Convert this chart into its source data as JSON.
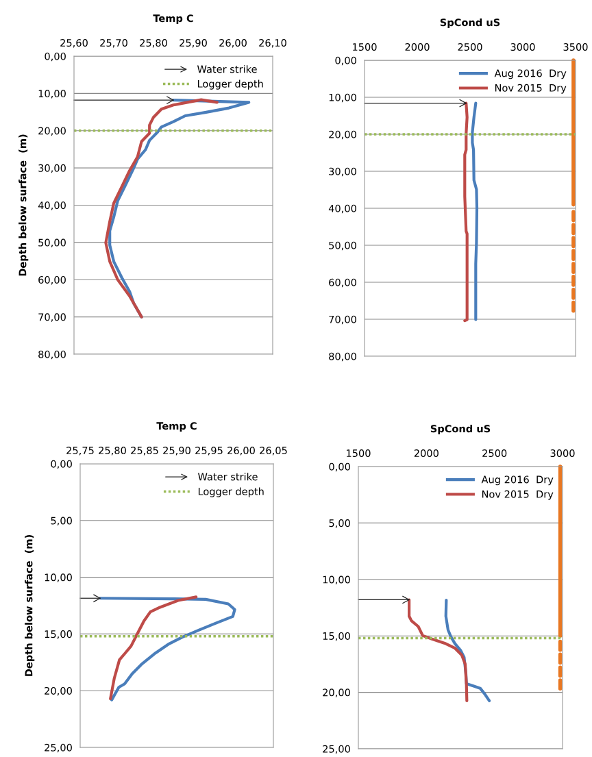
{
  "chart_data": [
    {
      "type": "line",
      "title": "Temp C",
      "ylabel": "Depth below surface  (m)",
      "legend": "top right",
      "grid": "y",
      "xlim": [
        25.6,
        26.1
      ],
      "xticks": [
        {
          "value": 25.6,
          "label": "25,60"
        },
        {
          "value": 25.7,
          "label": "25,70"
        },
        {
          "value": 25.8,
          "label": "25,80"
        },
        {
          "value": 25.9,
          "label": "25,90"
        },
        {
          "value": 26.0,
          "label": "26,00"
        },
        {
          "value": 26.1,
          "label": "26,10"
        }
      ],
      "ylim": [
        80,
        0
      ],
      "yticks": [
        {
          "value": 0,
          "label": "0,00"
        },
        {
          "value": 10,
          "label": "10,00"
        },
        {
          "value": 20,
          "label": "20,00"
        },
        {
          "value": 30,
          "label": "30,00"
        },
        {
          "value": 40,
          "label": "40,00"
        },
        {
          "value": 50,
          "label": "50,00"
        },
        {
          "value": 60,
          "label": "60,00"
        },
        {
          "value": 70,
          "label": "70,00"
        },
        {
          "value": 80,
          "label": "80,00"
        }
      ],
      "ref_lines": [
        {
          "axis": "y",
          "value": 11.8,
          "label": "Water strike",
          "color": "#222222",
          "line_style": "solid"
        },
        {
          "axis": "y",
          "value": 20,
          "label": "Logger depth",
          "color": "#9bbb59",
          "line_style": "dotted"
        }
      ],
      "series": [
        {
          "color": "#4a7ebb",
          "x": [
            25.85,
            26.04,
            25.99,
            25.93,
            25.88,
            25.85,
            25.82,
            25.81,
            25.79,
            25.78,
            25.76,
            25.75,
            25.73,
            25.71,
            25.7,
            25.69,
            25.69,
            25.7,
            25.72,
            25.74,
            25.75,
            25.77
          ],
          "values": [
            11.8,
            12.4,
            13.9,
            15.1,
            16.0,
            17.6,
            19.0,
            20.4,
            22.6,
            25.1,
            27.6,
            30.1,
            34.5,
            38.8,
            43.2,
            46.9,
            50.7,
            55.1,
            59.4,
            63.2,
            66.3,
            70.0
          ]
        },
        {
          "color": "#be4b48",
          "x": [
            25.96,
            25.92,
            25.89,
            25.85,
            25.82,
            25.8,
            25.79,
            25.79,
            25.77,
            25.76,
            25.74,
            25.72,
            25.7,
            25.69,
            25.68,
            25.69,
            25.71,
            25.74,
            25.77
          ],
          "values": [
            12.4,
            11.7,
            12.3,
            13.1,
            14.2,
            16.4,
            18.5,
            20.7,
            22.9,
            27.0,
            30.7,
            35.1,
            39.5,
            44.4,
            50.1,
            55.1,
            60.0,
            64.4,
            70.0
          ]
        }
      ]
    },
    {
      "type": "line",
      "title": "SpCond uS",
      "legend": "top right",
      "grid": "y",
      "xlim": [
        1500,
        3500
      ],
      "xticks": [
        1500,
        2000,
        2500,
        3000,
        3500
      ],
      "ylim": [
        80,
        0
      ],
      "yticks": [
        {
          "value": 0,
          "label": "0,00"
        },
        {
          "value": 10,
          "label": "10,00"
        },
        {
          "value": 20,
          "label": "20,00"
        },
        {
          "value": 30,
          "label": "30,00"
        },
        {
          "value": 40,
          "label": "40,00"
        },
        {
          "value": 50,
          "label": "50,00"
        },
        {
          "value": 60,
          "label": "60,00"
        },
        {
          "value": 70,
          "label": "70,00"
        },
        {
          "value": 80,
          "label": "80,00"
        }
      ],
      "ref_lines": [
        {
          "axis": "y",
          "value": 11.6,
          "color": "#222222",
          "line_style": "solid"
        },
        {
          "axis": "y",
          "value": 20,
          "color": "#9bbb59",
          "line_style": "dotted"
        }
      ],
      "series": [
        {
          "name": "Aug 2016  Dry",
          "color": "#4a7ebb",
          "x": [
            2554,
            2537,
            2522,
            2522,
            2533,
            2537,
            2561,
            2565,
            2561,
            2554,
            2554
          ],
          "values": [
            11.6,
            15.4,
            19.5,
            22.3,
            24.2,
            32.4,
            34.9,
            39.9,
            49.4,
            55.0,
            70.1
          ]
        },
        {
          "name": "Nov 2015  Dry",
          "color": "#be4b48",
          "x": [
            2463,
            2472,
            2463,
            2463,
            2450,
            2450,
            2463,
            2472,
            2472,
            2450
          ],
          "values": [
            11.6,
            15.4,
            19.8,
            24.2,
            25.5,
            36.8,
            46.2,
            46.9,
            70.1,
            70.4
          ]
        },
        {
          "color": "#e87722",
          "x": [
            3480,
            3480
          ],
          "values": [
            0,
            39
          ],
          "line_style": "solid"
        },
        {
          "color": "#e87722",
          "x": [
            3480,
            3480
          ],
          "values": [
            41,
            68
          ],
          "line_style": "dashed"
        }
      ]
    },
    {
      "type": "line",
      "title": "Temp C",
      "ylabel": "Depth below surface  (m)",
      "legend": "top right",
      "grid": "y",
      "xlim": [
        25.75,
        26.05
      ],
      "xticks": [
        {
          "value": 25.75,
          "label": "25,75"
        },
        {
          "value": 25.8,
          "label": "25,80"
        },
        {
          "value": 25.85,
          "label": "25,85"
        },
        {
          "value": 25.9,
          "label": "25,90"
        },
        {
          "value": 25.95,
          "label": "25,95"
        },
        {
          "value": 26.0,
          "label": "26,00"
        },
        {
          "value": 26.05,
          "label": "26,05"
        }
      ],
      "ylim": [
        25,
        0
      ],
      "yticks": [
        {
          "value": 0,
          "label": "0,00"
        },
        {
          "value": 5,
          "label": "5,00"
        },
        {
          "value": 10,
          "label": "10,00"
        },
        {
          "value": 15,
          "label": "15,00"
        },
        {
          "value": 20,
          "label": "20,00"
        },
        {
          "value": 25,
          "label": "25,00"
        }
      ],
      "ref_lines": [
        {
          "axis": "y",
          "value": 11.85,
          "label": "Water strike",
          "color": "#222222",
          "line_style": "solid"
        },
        {
          "axis": "y",
          "value": 15.2,
          "label": "Logger depth",
          "color": "#9bbb59",
          "line_style": "dotted"
        }
      ],
      "series": [
        {
          "color": "#4a7ebb",
          "x": [
            25.781,
            25.891,
            25.945,
            25.98,
            25.99,
            25.987,
            25.96,
            25.934,
            25.909,
            25.888,
            25.867,
            25.845,
            25.831,
            25.819,
            25.81,
            25.804,
            25.799
          ],
          "values": [
            11.85,
            11.9,
            11.95,
            12.35,
            12.85,
            13.46,
            14.06,
            14.67,
            15.27,
            15.87,
            16.68,
            17.69,
            18.49,
            19.4,
            19.7,
            20.31,
            20.81
          ]
        },
        {
          "color": "#be4b48",
          "x": [
            25.93,
            25.902,
            25.874,
            25.859,
            25.849,
            25.838,
            25.829,
            25.82,
            25.811,
            25.803,
            25.797
          ],
          "values": [
            11.74,
            12.05,
            12.65,
            13.05,
            13.86,
            15.07,
            16.07,
            16.68,
            17.28,
            18.9,
            20.71
          ]
        }
      ]
    },
    {
      "type": "line",
      "title": "SpCond uS",
      "legend": "top right",
      "grid": "y",
      "xlim": [
        1500,
        3000
      ],
      "xticks": [
        1500,
        2000,
        2500,
        3000
      ],
      "ylim": [
        25,
        0
      ],
      "yticks": [
        {
          "value": 0,
          "label": "0,00"
        },
        {
          "value": 5,
          "label": "5,00"
        },
        {
          "value": 10,
          "label": "10,00"
        },
        {
          "value": 15,
          "label": "15,00"
        },
        {
          "value": 20,
          "label": "20,00"
        },
        {
          "value": 25,
          "label": "25,00"
        }
      ],
      "ref_lines": [
        {
          "axis": "y",
          "value": 11.8,
          "color": "#222222",
          "line_style": "solid"
        },
        {
          "axis": "y",
          "value": 15.2,
          "color": "#9bbb59",
          "line_style": "dotted"
        }
      ],
      "series": [
        {
          "name": "Aug 2016  Dry",
          "color": "#4a7ebb",
          "x": [
            2146,
            2143,
            2159,
            2180,
            2210,
            2252,
            2277,
            2290,
            2294,
            2344,
            2395,
            2428,
            2462
          ],
          "values": [
            11.84,
            13.26,
            14.47,
            15.08,
            15.69,
            16.3,
            16.9,
            18.32,
            19.23,
            19.43,
            19.64,
            20.14,
            20.75
          ]
        },
        {
          "name": "Nov 2015  Dry",
          "color": "#be4b48",
          "x": [
            1873,
            1873,
            1890,
            1940,
            1973,
            2041,
            2142,
            2210,
            2260,
            2285,
            2294,
            2297
          ],
          "values": [
            11.8,
            13.26,
            13.66,
            14.17,
            14.98,
            15.28,
            15.69,
            16.09,
            16.7,
            17.51,
            19.33,
            20.75
          ]
        },
        {
          "color": "#e87722",
          "x": [
            2983,
            2983
          ],
          "values": [
            0,
            15
          ],
          "line_style": "solid"
        },
        {
          "color": "#e87722",
          "x": [
            2983,
            2983
          ],
          "values": [
            15.5,
            20
          ],
          "line_style": "dashed"
        }
      ]
    }
  ]
}
